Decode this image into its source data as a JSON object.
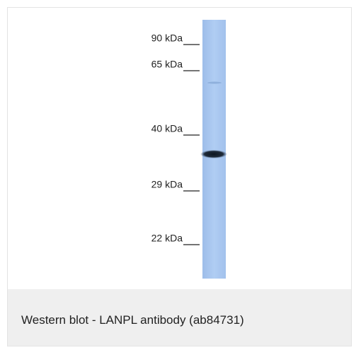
{
  "figure": {
    "markers": [
      "90 kDa",
      "65 kDa",
      "40 kDa",
      "29 kDa",
      "22 kDa"
    ]
  },
  "caption": "Western blot - LANPL antibody (ab84731)"
}
